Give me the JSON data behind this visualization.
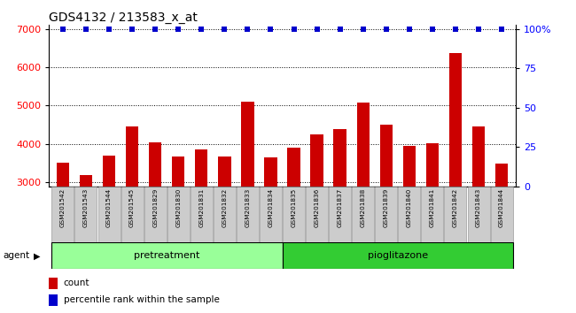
{
  "title": "GDS4132 / 213583_x_at",
  "categories": [
    "GSM201542",
    "GSM201543",
    "GSM201544",
    "GSM201545",
    "GSM201829",
    "GSM201830",
    "GSM201831",
    "GSM201832",
    "GSM201833",
    "GSM201834",
    "GSM201835",
    "GSM201836",
    "GSM201837",
    "GSM201838",
    "GSM201839",
    "GSM201840",
    "GSM201841",
    "GSM201842",
    "GSM201843",
    "GSM201844"
  ],
  "bar_values": [
    3520,
    3200,
    3700,
    4450,
    4050,
    3680,
    3870,
    3680,
    5100,
    3650,
    3900,
    4250,
    4380,
    5080,
    4500,
    3950,
    4030,
    6380,
    4460,
    3500
  ],
  "percentile_values": [
    100,
    100,
    100,
    100,
    100,
    100,
    100,
    100,
    100,
    100,
    100,
    100,
    100,
    100,
    100,
    100,
    100,
    100,
    100,
    100
  ],
  "bar_color": "#cc0000",
  "percentile_color": "#0000cc",
  "ylim_left": [
    2900,
    7100
  ],
  "ylim_right": [
    -12.5,
    112.5
  ],
  "yticks_left": [
    3000,
    4000,
    5000,
    6000,
    7000
  ],
  "yticks_right": [
    0,
    25,
    50,
    75,
    100
  ],
  "ytick_labels_right": [
    "0",
    "25",
    "50",
    "75",
    "100%"
  ],
  "grid_y": [
    3000,
    4000,
    5000,
    6000,
    7000
  ],
  "pretreatment_count": 10,
  "pioglitazone_count": 10,
  "group_labels": [
    "pretreatment",
    "pioglitazone"
  ],
  "group_colors": [
    "#99ff99",
    "#33cc33"
  ],
  "agent_label": "agent",
  "legend_count_label": "count",
  "legend_percentile_label": "percentile rank within the sample",
  "bar_width": 0.55,
  "plot_bg_color": "#ffffff",
  "title_fontsize": 10,
  "axis_fontsize": 8,
  "tick_label_fontsize": 7
}
